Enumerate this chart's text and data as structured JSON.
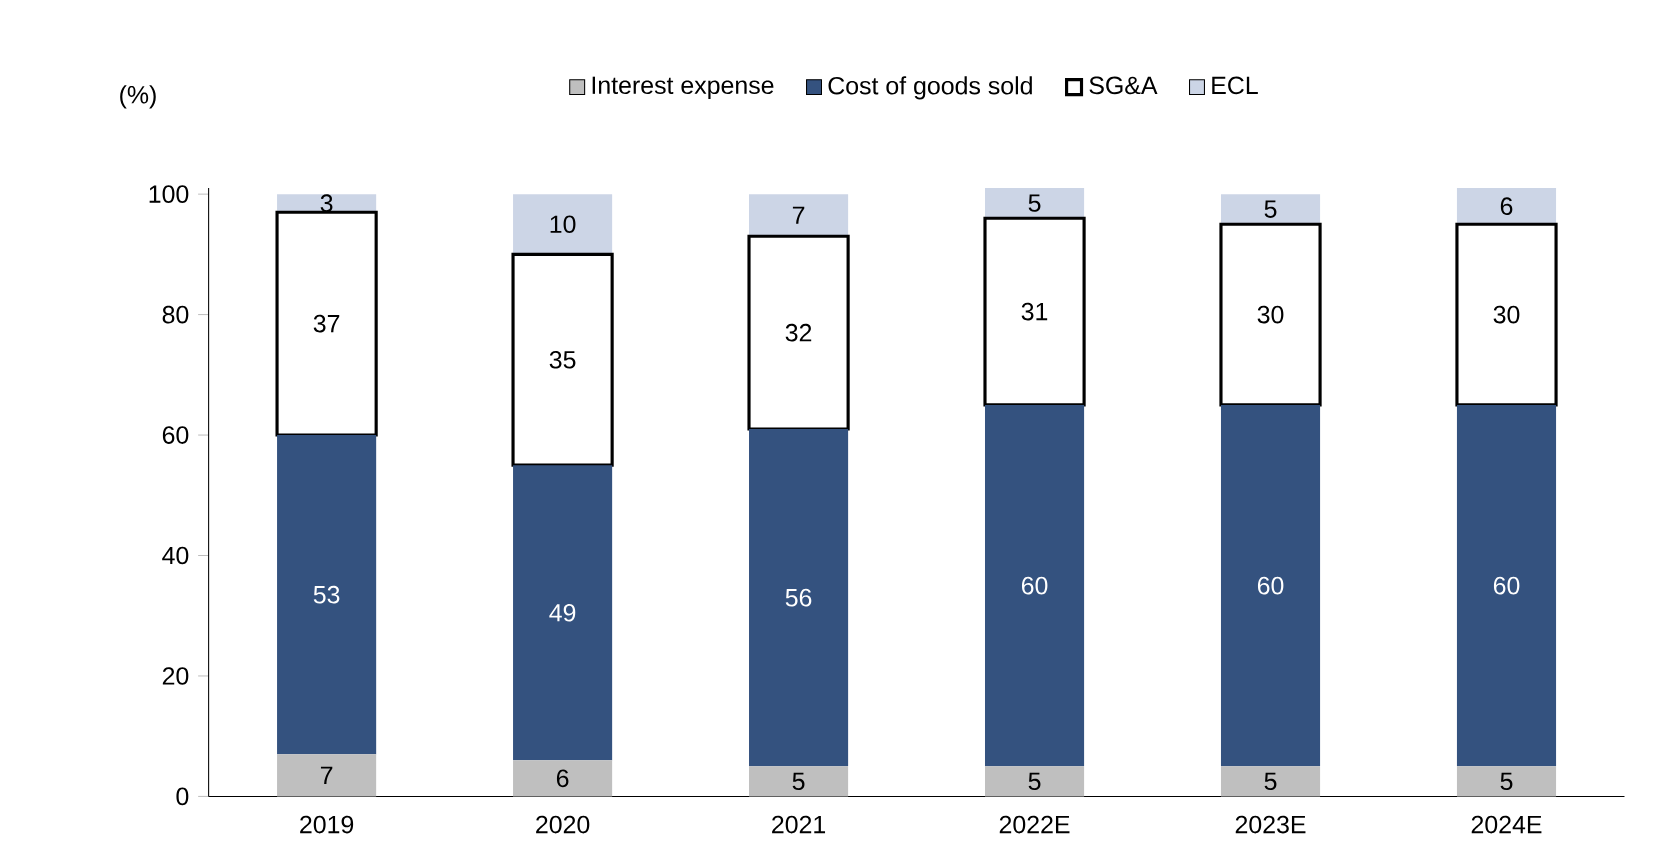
{
  "chart_data": {
    "type": "bar",
    "stacked": true,
    "ylabel": "(%)",
    "categories": [
      "2019",
      "2020",
      "2021",
      "2022E",
      "2023E",
      "2024E"
    ],
    "series": [
      {
        "name": "Interest expense",
        "color": "#bfbfbf",
        "values": [
          7,
          6,
          5,
          5,
          5,
          5
        ]
      },
      {
        "name": "Cost of goods sold",
        "color": "#34527f",
        "values": [
          53,
          49,
          56,
          60,
          60,
          60
        ]
      },
      {
        "name": "SG&A",
        "color": "#ffffff",
        "values": [
          37,
          35,
          32,
          31,
          30,
          30
        ]
      },
      {
        "name": "ECL",
        "color": "#ccd5e6",
        "values": [
          3,
          10,
          7,
          5,
          5,
          6
        ]
      }
    ],
    "ylim": [
      0,
      101
    ],
    "yticks": [
      0,
      20,
      40,
      60,
      80,
      100
    ],
    "data_labels": true,
    "legend": "top",
    "grid": false
  }
}
